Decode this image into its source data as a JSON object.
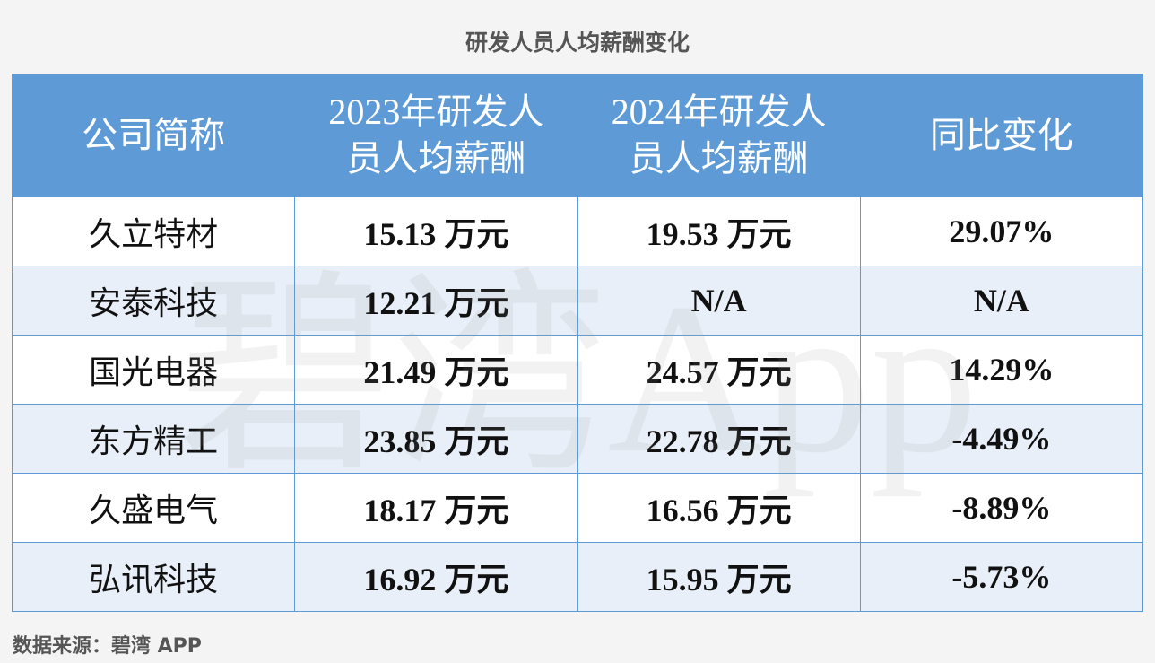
{
  "title": "研发人员人均薪酬变化",
  "table": {
    "header": [
      "公司简称",
      "2023年研发人员人均薪酬",
      "2024年研发人员人均薪酬",
      "同比变化"
    ],
    "rows": [
      [
        "久立特材",
        "15.13 万元",
        "19.53 万元",
        "29.07%"
      ],
      [
        "安泰科技",
        "12.21 万元",
        "N/A",
        "N/A"
      ],
      [
        "国光电器",
        "21.49 万元",
        "24.57 万元",
        "14.29%"
      ],
      [
        "东方精工",
        "23.85 万元",
        "22.78 万元",
        "-4.49%"
      ],
      [
        "久盛电气",
        "18.17 万元",
        "16.56 万元",
        "-8.89%"
      ],
      [
        "弘讯科技",
        "16.92 万元",
        "15.95 万元",
        "-5.73%"
      ]
    ]
  },
  "watermark": "碧湾App",
  "source": "数据来源：碧湾 APP"
}
